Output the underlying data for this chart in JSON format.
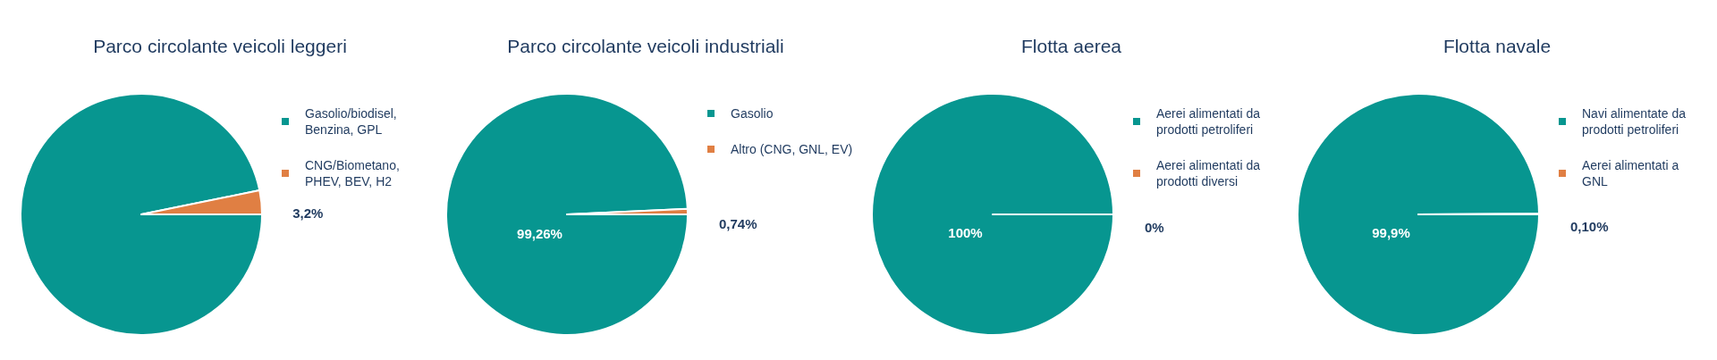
{
  "chart_data": [
    {
      "type": "pie",
      "title": "Parco circolante veicoli leggeri",
      "categories": [
        "Gasolio/biodisel, Benzina, GPL",
        "CNG/Biometano, PHEV, BEV, H2"
      ],
      "values": [
        96.8,
        3.2
      ],
      "colors": [
        "#079690",
        "#e07f43"
      ],
      "value_labels": [
        null,
        "3,2%"
      ],
      "legend": "right"
    },
    {
      "type": "pie",
      "title": "Parco circolante veicoli industriali",
      "categories": [
        "Gasolio",
        "Altro (CNG, GNL, EV)"
      ],
      "values": [
        99.26,
        0.74
      ],
      "colors": [
        "#079690",
        "#e07f43"
      ],
      "value_labels": [
        "99,26%",
        "0,74%"
      ],
      "legend": "right"
    },
    {
      "type": "pie",
      "title": "Flotta aerea",
      "categories": [
        "Aerei alimentati da prodotti petroliferi",
        "Aerei alimentati da prodotti diversi"
      ],
      "values": [
        100,
        0
      ],
      "colors": [
        "#079690",
        "#e07f43"
      ],
      "value_labels": [
        "100%",
        "0%"
      ],
      "legend": "right"
    },
    {
      "type": "pie",
      "title": "Flotta navale",
      "categories": [
        "Navi alimentate da prodotti petroliferi",
        "Aerei alimentati a GNL"
      ],
      "values": [
        99.9,
        0.1
      ],
      "colors": [
        "#079690",
        "#e07f43"
      ],
      "value_labels": [
        "99,9%",
        "0,10%"
      ],
      "legend": "right"
    }
  ]
}
